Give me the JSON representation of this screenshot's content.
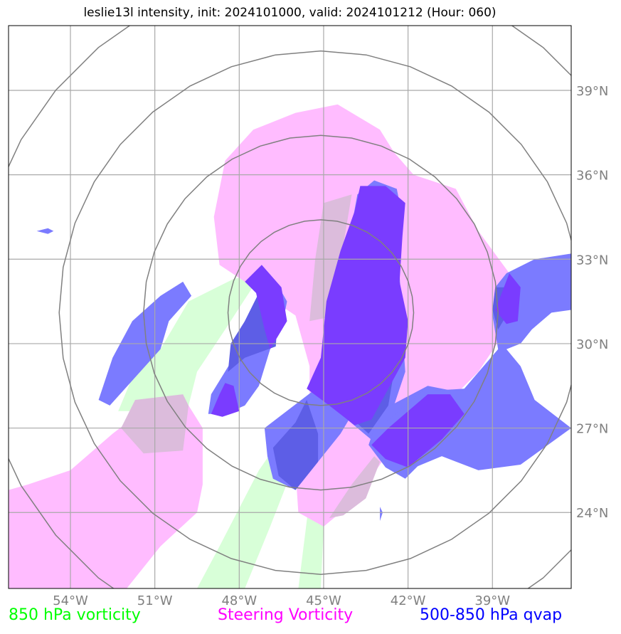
{
  "chart_data": {
    "type": "map",
    "title": "leslie13l intensity, init: 2024101000, valid: 2024101212 (Hour: 060)",
    "x_ticks": [
      -54,
      -51,
      -48,
      -45,
      -42,
      -39
    ],
    "x_tick_labels": [
      "54°W",
      "51°W",
      "48°W",
      "45°W",
      "42°W",
      "39°W"
    ],
    "y_ticks": [
      24,
      27,
      30,
      33,
      36,
      39
    ],
    "y_tick_labels": [
      "24°N",
      "27°N",
      "30°N",
      "33°N",
      "36°N",
      "39°N"
    ],
    "lon_range": [
      -56.2,
      -36.2
    ],
    "lat_range": [
      21.3,
      41.3
    ],
    "range_ring_center": [
      -45.1,
      31.1
    ],
    "range_ring_radii_deg": [
      3.3,
      6.3,
      9.3,
      12.3
    ],
    "legend": [
      {
        "label": "850 hPa vorticity",
        "color": "#00ff00"
      },
      {
        "label": "Steering Vorticity",
        "color": "#ff00ff"
      },
      {
        "label": "500-850 hPa qvap",
        "color": "#0000ff"
      }
    ],
    "series": [
      {
        "name": "850 hPa vorticity",
        "color": "#d8ffd8",
        "polygons": [
          [
            [
              -52.3,
              27.6
            ],
            [
              -51.8,
              28.8
            ],
            [
              -50.8,
              29.8
            ],
            [
              -49.8,
              31.5
            ],
            [
              -48.2,
              32.3
            ],
            [
              -47.2,
              32.5
            ],
            [
              -48.5,
              30.5
            ],
            [
              -49.5,
              29.0
            ],
            [
              -49.8,
              27.8
            ],
            [
              -51.5,
              27.6
            ]
          ],
          [
            [
              -49.5,
              21.3
            ],
            [
              -48.7,
              22.8
            ],
            [
              -47.3,
              25.5
            ],
            [
              -46.4,
              26.8
            ],
            [
              -46.0,
              25.8
            ],
            [
              -46.9,
              23.5
            ],
            [
              -47.8,
              21.3
            ]
          ],
          [
            [
              -45.1,
              21.3
            ],
            [
              -45.0,
              23.5
            ],
            [
              -44.0,
              25.8
            ],
            [
              -43.5,
              27.0
            ],
            [
              -44.0,
              27.5
            ],
            [
              -44.8,
              26.3
            ],
            [
              -45.5,
              24.5
            ],
            [
              -45.9,
              21.3
            ]
          ],
          [
            [
              -45.1,
              35.2
            ],
            [
              -44.2,
              35.4
            ],
            [
              -44.3,
              34.0
            ],
            [
              -44.6,
              31.2
            ],
            [
              -45.4,
              30.8
            ],
            [
              -45.0,
              33.0
            ]
          ]
        ]
      },
      {
        "name": "Steering Vorticity",
        "color": "#ffbcff",
        "polygons": [
          [
            [
              -44.5,
              38.5
            ],
            [
              -46.0,
              38.2
            ],
            [
              -47.5,
              37.6
            ],
            [
              -48.5,
              36.5
            ],
            [
              -48.9,
              34.5
            ],
            [
              -48.7,
              32.8
            ],
            [
              -47.5,
              32.0
            ],
            [
              -46.0,
              31.0
            ],
            [
              -45.5,
              29.2
            ],
            [
              -45.5,
              27.2
            ],
            [
              -46.0,
              25.5
            ],
            [
              -45.9,
              24.0
            ],
            [
              -45.0,
              23.5
            ],
            [
              -43.8,
              24.5
            ],
            [
              -42.8,
              26.0
            ],
            [
              -41.5,
              27.0
            ],
            [
              -39.5,
              29.0
            ],
            [
              -38.5,
              30.5
            ],
            [
              -38.4,
              32.5
            ],
            [
              -39.5,
              34.0
            ],
            [
              -40.3,
              35.5
            ],
            [
              -41.8,
              36.0
            ],
            [
              -42.5,
              36.8
            ],
            [
              -43.0,
              37.6
            ]
          ],
          [
            [
              -56.2,
              24.8
            ],
            [
              -55.5,
              25.0
            ],
            [
              -54.0,
              25.5
            ],
            [
              -52.5,
              26.8
            ],
            [
              -51.2,
              27.8
            ],
            [
              -49.8,
              27.8
            ],
            [
              -49.3,
              27.0
            ],
            [
              -49.3,
              25.0
            ],
            [
              -49.5,
              24.0
            ],
            [
              -50.8,
              22.8
            ],
            [
              -52.0,
              21.3
            ],
            [
              -56.2,
              21.3
            ]
          ]
        ]
      },
      {
        "name": "Steering overlap",
        "color": "#dcbcdc",
        "polygons": [
          [
            [
              -45.0,
              35.0
            ],
            [
              -44.0,
              35.3
            ],
            [
              -44.3,
              33.5
            ],
            [
              -44.5,
              31.0
            ],
            [
              -45.5,
              30.8
            ],
            [
              -45.3,
              33.0
            ]
          ],
          [
            [
              -52.2,
              27.0
            ],
            [
              -51.7,
              28.0
            ],
            [
              -50.0,
              28.2
            ],
            [
              -49.8,
              27.8
            ],
            [
              -50.0,
              26.2
            ],
            [
              -51.4,
              26.1
            ]
          ],
          [
            [
              -44.8,
              23.8
            ],
            [
              -44.0,
              25.0
            ],
            [
              -43.2,
              26.0
            ],
            [
              -43.0,
              25.8
            ],
            [
              -43.5,
              24.5
            ],
            [
              -44.3,
              23.9
            ]
          ]
        ]
      },
      {
        "name": "500-850 hPa qvap",
        "color": "#7b7bff",
        "polygons": [
          [
            [
              -53.0,
              28.0
            ],
            [
              -52.5,
              29.5
            ],
            [
              -51.8,
              30.8
            ],
            [
              -50.8,
              31.7
            ],
            [
              -50.0,
              32.2
            ],
            [
              -49.7,
              31.7
            ],
            [
              -50.5,
              30.8
            ],
            [
              -50.8,
              29.8
            ],
            [
              -52.6,
              27.8
            ]
          ],
          [
            [
              -55.2,
              34.0
            ],
            [
              -54.8,
              33.9
            ],
            [
              -54.6,
              34.0
            ],
            [
              -54.8,
              34.1
            ]
          ],
          [
            [
              -49.1,
              27.5
            ],
            [
              -49.0,
              28.2
            ],
            [
              -48.2,
              29.5
            ],
            [
              -47.8,
              30.8
            ],
            [
              -47.2,
              32.0
            ],
            [
              -46.7,
              32.2
            ],
            [
              -46.3,
              31.5
            ],
            [
              -46.5,
              30.5
            ],
            [
              -46.9,
              29.8
            ],
            [
              -47.3,
              28.5
            ],
            [
              -47.8,
              27.8
            ],
            [
              -48.5,
              27.5
            ]
          ],
          [
            [
              -47.1,
              27.0
            ],
            [
              -47.0,
              26.0
            ],
            [
              -46.8,
              25.2
            ],
            [
              -46.0,
              24.8
            ],
            [
              -45.2,
              25.8
            ],
            [
              -44.4,
              26.8
            ],
            [
              -43.8,
              27.8
            ],
            [
              -44.2,
              28.5
            ],
            [
              -45.4,
              28.3
            ]
          ],
          [
            [
              -43.8,
              35.3
            ],
            [
              -44.0,
              34.2
            ],
            [
              -44.3,
              33.2
            ],
            [
              -44.8,
              31.5
            ],
            [
              -45.0,
              29.0
            ],
            [
              -44.4,
              27.5
            ],
            [
              -43.2,
              26.5
            ],
            [
              -42.6,
              27.5
            ],
            [
              -42.1,
              29.0
            ],
            [
              -42.2,
              30.5
            ],
            [
              -42.3,
              32.5
            ],
            [
              -42.2,
              34.5
            ],
            [
              -42.4,
              35.5
            ],
            [
              -43.2,
              35.8
            ]
          ],
          [
            [
              -43.0,
              27.6
            ],
            [
              -41.3,
              28.5
            ],
            [
              -40.3,
              28.3
            ],
            [
              -39.5,
              27.5
            ],
            [
              -40.3,
              26.8
            ],
            [
              -41.5,
              25.8
            ],
            [
              -42.1,
              25.2
            ],
            [
              -42.8,
              25.6
            ],
            [
              -43.4,
              26.4
            ]
          ],
          [
            [
              -38.5,
              32.5
            ],
            [
              -37.5,
              33.0
            ],
            [
              -36.2,
              33.2
            ],
            [
              -36.2,
              31.2
            ],
            [
              -36.9,
              31.1
            ],
            [
              -37.6,
              30.5
            ],
            [
              -38.0,
              30.0
            ],
            [
              -38.5,
              29.8
            ],
            [
              -38.0,
              29.2
            ],
            [
              -37.5,
              28.0
            ],
            [
              -36.2,
              27.0
            ],
            [
              -38.0,
              25.7
            ],
            [
              -39.5,
              25.5
            ],
            [
              -40.8,
              26.0
            ],
            [
              -42.0,
              25.5
            ],
            [
              -42.7,
              26.6
            ],
            [
              -42.8,
              27.2
            ],
            [
              -41.5,
              28.3
            ],
            [
              -40.0,
              28.4
            ],
            [
              -38.8,
              29.8
            ],
            [
              -39.0,
              31.0
            ],
            [
              -38.9,
              32.0
            ]
          ],
          [
            [
              -43.0,
              24.2
            ],
            [
              -43.0,
              23.7
            ],
            [
              -42.9,
              24.0
            ]
          ]
        ]
      },
      {
        "name": "qvap overlap",
        "color": "#5d5ee6",
        "polygons": [
          [
            [
              -43.8,
              35.0
            ],
            [
              -44.0,
              34.2
            ],
            [
              -44.3,
              33.2
            ],
            [
              -44.8,
              31.5
            ],
            [
              -45.0,
              29.0
            ],
            [
              -44.5,
              27.8
            ],
            [
              -43.4,
              26.8
            ],
            [
              -42.7,
              27.8
            ],
            [
              -42.5,
              29.0
            ],
            [
              -42.3,
              30.5
            ],
            [
              -42.5,
              32.5
            ],
            [
              -42.5,
              34.5
            ],
            [
              -42.6,
              35.0
            ],
            [
              -43.2,
              35.2
            ]
          ],
          [
            [
              -47.2,
              32.0
            ],
            [
              -46.6,
              31.5
            ],
            [
              -46.7,
              29.9
            ],
            [
              -47.8,
              29.5
            ],
            [
              -48.4,
              29.0
            ],
            [
              -48.3,
              30.0
            ],
            [
              -47.8,
              30.8
            ]
          ],
          [
            [
              -45.6,
              28.0
            ],
            [
              -45.2,
              26.8
            ],
            [
              -45.2,
              25.8
            ],
            [
              -46.0,
              24.8
            ],
            [
              -46.6,
              25.3
            ],
            [
              -46.8,
              26.3
            ],
            [
              -46.0,
              27.2
            ]
          ],
          [
            [
              -38.4,
              32.0
            ],
            [
              -38.5,
              31.0
            ],
            [
              -38.8,
              30.5
            ],
            [
              -39.0,
              31.2
            ],
            [
              -38.9,
              32.0
            ]
          ]
        ]
      },
      {
        "name": "qvap strong",
        "color": "#7a3cff",
        "polygons": [
          [
            [
              -47.2,
              32.8
            ],
            [
              -46.5,
              32.0
            ],
            [
              -46.3,
              30.8
            ],
            [
              -46.9,
              29.8
            ],
            [
              -47.1,
              30.5
            ],
            [
              -47.4,
              31.8
            ],
            [
              -47.8,
              32.2
            ]
          ],
          [
            [
              -49.0,
              27.5
            ],
            [
              -48.7,
              28.2
            ],
            [
              -48.5,
              28.6
            ],
            [
              -48.2,
              28.5
            ],
            [
              -48.0,
              27.6
            ],
            [
              -48.6,
              27.4
            ]
          ],
          [
            [
              -43.7,
              35.6
            ],
            [
              -43.9,
              34.7
            ],
            [
              -44.4,
              33.3
            ],
            [
              -44.9,
              31.5
            ],
            [
              -45.1,
              29.5
            ],
            [
              -45.6,
              28.4
            ],
            [
              -44.8,
              27.8
            ],
            [
              -43.9,
              27.1
            ],
            [
              -43.3,
              27.3
            ],
            [
              -42.7,
              28.4
            ],
            [
              -42.1,
              29.5
            ],
            [
              -42.0,
              30.8
            ],
            [
              -42.3,
              32.2
            ],
            [
              -42.2,
              33.8
            ],
            [
              -42.1,
              35.0
            ],
            [
              -42.8,
              35.6
            ]
          ],
          [
            [
              -42.7,
              27.0
            ],
            [
              -41.3,
              28.2
            ],
            [
              -40.5,
              28.2
            ],
            [
              -40.0,
              27.5
            ],
            [
              -40.8,
              26.6
            ],
            [
              -42.0,
              25.6
            ],
            [
              -42.8,
              25.9
            ],
            [
              -43.3,
              26.4
            ]
          ],
          [
            [
              -38.4,
              32.5
            ],
            [
              -38.0,
              32.0
            ],
            [
              -38.1,
              30.8
            ],
            [
              -38.5,
              30.7
            ],
            [
              -38.9,
              31.2
            ]
          ]
        ]
      }
    ]
  }
}
